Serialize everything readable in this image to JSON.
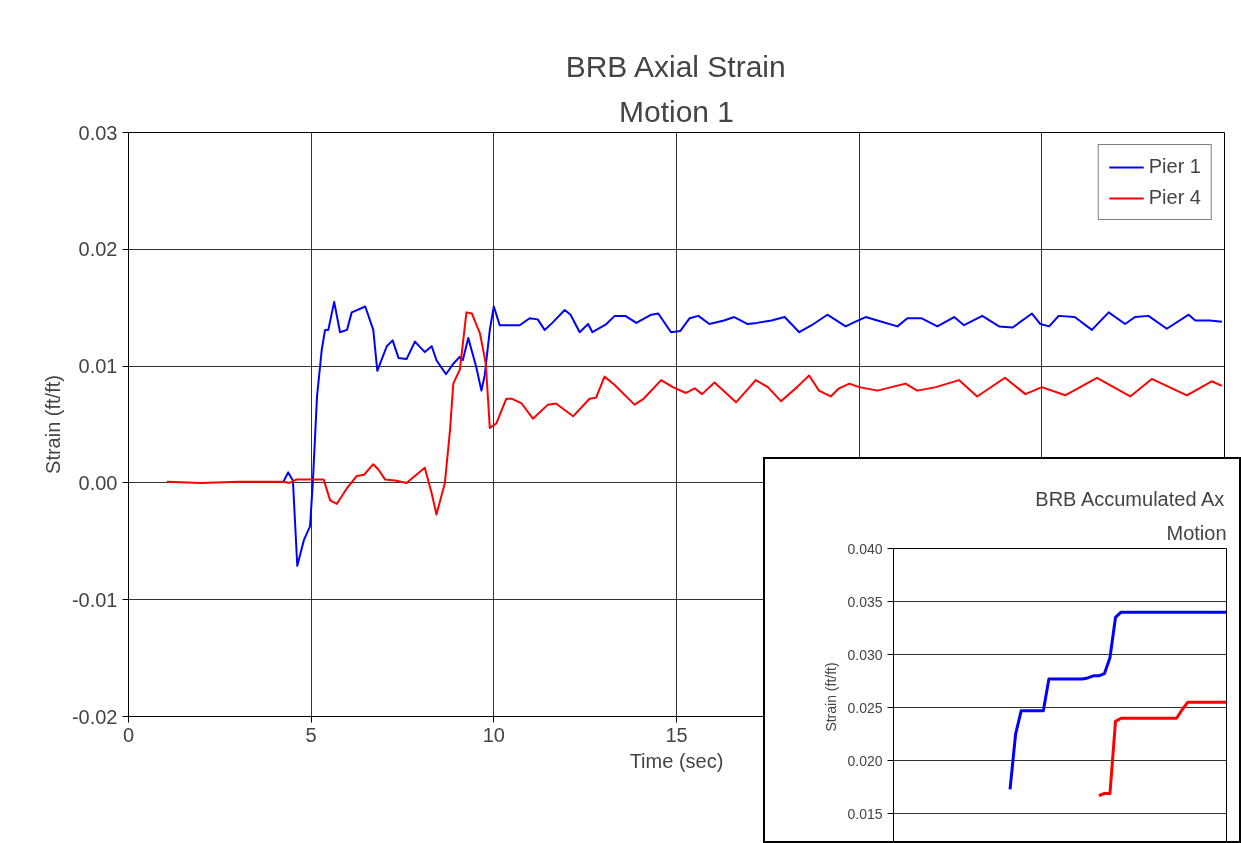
{
  "chart_data": [
    {
      "type": "line",
      "title": "BRB Axial Strain",
      "subtitle": "Motion 1",
      "xlabel": "Time (sec)",
      "ylabel": "Strain (ft/ft)",
      "xlim": [
        0,
        30
      ],
      "xticks": [
        0,
        5,
        10,
        15,
        {
          "value": 20,
          "label": null
        },
        {
          "value": 25,
          "label": null
        },
        {
          "value": 30,
          "label": null
        }
      ],
      "ylim": [
        -0.02,
        0.03
      ],
      "yticks": [
        -0.02,
        -0.01,
        {
          "value": 0,
          "label": "0.00"
        },
        0.01,
        0.02,
        0.03
      ],
      "grid": true,
      "legend": "top right",
      "marker": "none",
      "line_style": "solid",
      "series": [
        {
          "name": "Pier 1",
          "color": "#0000ff",
          "x": [
            4.24,
            4.37,
            4.5,
            4.62,
            4.8,
            4.97,
            5.05,
            5.16,
            5.29,
            5.38,
            5.47,
            5.63,
            5.79,
            5.98,
            6.11,
            6.48,
            6.7,
            6.81,
            7.07,
            7.23,
            7.39,
            7.61,
            7.84,
            8.11,
            8.3,
            8.43,
            8.69,
            8.89,
            9.07,
            9.15,
            9.3,
            9.52,
            9.66,
            9.75,
            9.89,
            10.0,
            10.16,
            10.71,
            10.98,
            11.2,
            11.39,
            11.6,
            11.94,
            12.1,
            12.35,
            12.58,
            12.7,
            13.08,
            13.31,
            13.6,
            13.9,
            14.31,
            14.5,
            14.85,
            15.1,
            15.36,
            15.6,
            15.9,
            16.3,
            16.58,
            16.95,
            17.2,
            17.6,
            17.96,
            18.36,
            18.7,
            19.13,
            19.63,
            19.9,
            20.18,
            20.5,
            21.05,
            21.32,
            21.7,
            22.14,
            22.6,
            22.87,
            23.37,
            23.83,
            24.2,
            24.73,
            24.96,
            25.2,
            25.46,
            25.9,
            26.37,
            26.83,
            27.28,
            27.55,
            27.92,
            28.42,
            29.02,
            29.2,
            29.6,
            29.93
          ],
          "values": [
            0.0001,
            0.0009,
            0.0002,
            -0.0071,
            -0.0049,
            -0.0037,
            0.0003,
            0.0074,
            0.0114,
            0.0131,
            0.0131,
            0.0155,
            0.0129,
            0.0131,
            0.0146,
            0.0151,
            0.0131,
            0.0096,
            0.0117,
            0.0122,
            0.0107,
            0.0106,
            0.0121,
            0.0112,
            0.0117,
            0.0105,
            0.0093,
            0.0102,
            0.0108,
            0.0105,
            0.0124,
            0.0099,
            0.0079,
            0.0092,
            0.0131,
            0.0151,
            0.0135,
            0.0135,
            0.0141,
            0.014,
            0.0131,
            0.0137,
            0.0148,
            0.0144,
            0.0129,
            0.0136,
            0.0129,
            0.0136,
            0.0143,
            0.0143,
            0.0137,
            0.0144,
            0.0145,
            0.0129,
            0.013,
            0.0141,
            0.0143,
            0.0136,
            0.0139,
            0.0142,
            0.0136,
            0.0137,
            0.0139,
            0.0142,
            0.0129,
            0.0135,
            0.0144,
            0.0134,
            0.0138,
            0.0142,
            0.0139,
            0.0134,
            0.0141,
            0.0141,
            0.0134,
            0.0142,
            0.0135,
            0.0143,
            0.0134,
            0.0133,
            0.0145,
            0.0136,
            0.0134,
            0.0143,
            0.0142,
            0.0131,
            0.0146,
            0.0136,
            0.0142,
            0.0143,
            0.0132,
            0.0144,
            0.0139,
            0.0139,
            0.0138
          ]
        },
        {
          "name": "Pier 4",
          "color": "#ff0000",
          "x": [
            1.05,
            2.0,
            3.0,
            4.0,
            4.24,
            4.4,
            4.61,
            5.34,
            5.52,
            5.7,
            5.97,
            6.25,
            6.45,
            6.7,
            6.85,
            7.02,
            7.3,
            7.61,
            7.88,
            8.11,
            8.3,
            8.43,
            8.66,
            8.8,
            8.89,
            9.07,
            9.25,
            9.4,
            9.62,
            9.78,
            9.89,
            10.07,
            10.34,
            10.5,
            10.76,
            11.07,
            11.48,
            11.7,
            12.17,
            12.62,
            12.8,
            13.03,
            13.3,
            13.85,
            14.1,
            14.58,
            14.9,
            15.26,
            15.5,
            15.7,
            16.04,
            16.63,
            17.17,
            17.5,
            17.86,
            18.3,
            18.63,
            18.9,
            19.22,
            19.45,
            19.73,
            20.0,
            20.5,
            21.27,
            21.59,
            22.1,
            22.73,
            23.23,
            23.99,
            24.55,
            25.0,
            25.64,
            26.51,
            27.42,
            28.01,
            28.97,
            29.65,
            29.93
          ],
          "values": [
            0.0001,
            0.0,
            0.0001,
            0.0001,
            0.0001,
            0.0,
            0.0003,
            0.0003,
            -0.0015,
            -0.0018,
            -0.0005,
            0.0006,
            0.0007,
            0.0016,
            0.0011,
            0.0003,
            0.0002,
            0.0,
            0.0007,
            0.0013,
            -0.0009,
            -0.0027,
            0.0,
            0.0045,
            0.0085,
            0.0097,
            0.0146,
            0.0145,
            0.0128,
            0.0102,
            0.0047,
            0.0051,
            0.0072,
            0.0072,
            0.0068,
            0.0055,
            0.0067,
            0.0068,
            0.0057,
            0.0072,
            0.0073,
            0.0091,
            0.0084,
            0.0067,
            0.0072,
            0.0088,
            0.0082,
            0.0077,
            0.0081,
            0.0076,
            0.0086,
            0.0069,
            0.0088,
            0.0082,
            0.007,
            0.0082,
            0.0092,
            0.0079,
            0.0074,
            0.0081,
            0.0085,
            0.0082,
            0.0079,
            0.0085,
            0.0079,
            0.0082,
            0.0088,
            0.0074,
            0.009,
            0.0076,
            0.0082,
            0.0075,
            0.009,
            0.0074,
            0.0089,
            0.0075,
            0.0087,
            0.0083
          ]
        }
      ]
    },
    {
      "type": "line",
      "title": "BRB Accumulated Ax",
      "subtitle": "Motion",
      "ylabel": "Strain (ft/ft)",
      "categories": [
        null,
        null,
        null,
        null,
        null,
        null,
        null,
        null,
        null,
        null,
        null,
        null,
        null,
        null,
        null,
        null,
        null,
        null,
        null,
        null,
        null,
        null,
        null,
        null,
        null,
        null,
        null,
        null,
        null,
        null,
        null,
        null,
        null,
        null,
        null,
        null,
        null,
        null,
        null,
        null,
        null,
        null,
        null,
        null,
        null,
        null,
        null,
        null,
        null,
        null,
        null,
        null,
        null,
        null,
        null,
        null,
        null,
        null,
        null,
        null,
        null
      ],
      "ylim": [
        0.012,
        0.04
      ],
      "yticks": [
        {
          "value": 0.015,
          "label": "0.015"
        },
        {
          "value": 0.02,
          "label": "0.020"
        },
        {
          "value": 0.025,
          "label": "0.025"
        },
        {
          "value": 0.03,
          "label": "0.030"
        },
        {
          "value": 0.035,
          "label": "0.035"
        },
        {
          "value": 0.04,
          "label": "0.040"
        }
      ],
      "tick_labels": "y",
      "grid": "y",
      "marker": "none",
      "line_style": "solid",
      "series": [
        {
          "color": "#0000ff",
          "values": [
            null,
            null,
            null,
            null,
            null,
            null,
            null,
            null,
            null,
            null,
            null,
            null,
            null,
            null,
            null,
            null,
            null,
            null,
            null,
            null,
            null,
            0.0173,
            0.0225,
            0.0247,
            0.0247,
            0.0247,
            0.0247,
            0.0247,
            0.0277,
            0.0277,
            0.0277,
            0.0277,
            0.0277,
            0.0277,
            0.0277,
            0.0278,
            0.028,
            0.028,
            0.0282,
            0.0297,
            0.0335,
            0.034,
            0.034,
            0.034,
            0.034,
            0.034,
            0.034,
            0.034,
            0.034,
            0.034,
            0.034,
            0.034,
            0.034,
            0.034,
            0.034,
            0.034,
            0.034,
            0.034,
            0.034,
            0.034,
            0.034
          ]
        },
        {
          "color": "#ff0000",
          "values": [
            null,
            null,
            null,
            null,
            null,
            null,
            null,
            null,
            null,
            null,
            null,
            null,
            null,
            null,
            null,
            null,
            null,
            null,
            null,
            null,
            null,
            null,
            null,
            null,
            null,
            null,
            null,
            null,
            null,
            null,
            null,
            null,
            null,
            null,
            null,
            null,
            null,
            0.0167,
            0.0169,
            0.0169,
            0.0237,
            0.024,
            0.024,
            0.024,
            0.024,
            0.024,
            0.024,
            0.024,
            0.024,
            0.024,
            0.024,
            0.024,
            0.0248,
            0.0255,
            0.0255,
            0.0255,
            0.0255,
            0.0255,
            0.0255,
            0.0255,
            0.0255
          ]
        }
      ]
    }
  ]
}
